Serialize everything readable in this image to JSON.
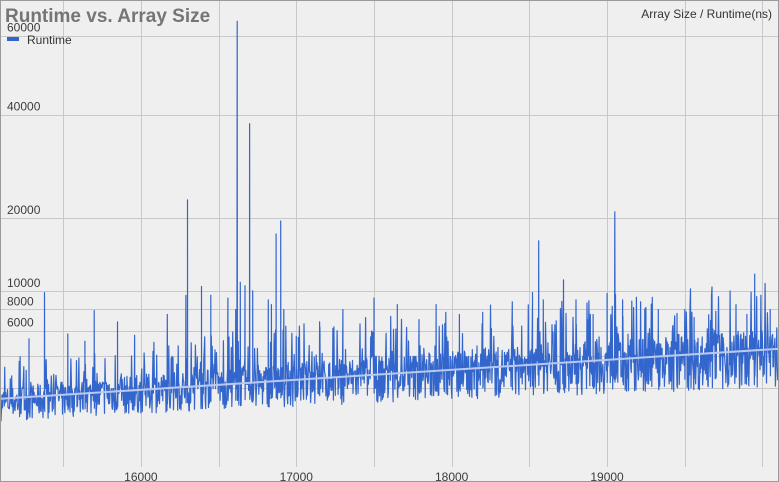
{
  "chart_data": {
    "type": "line",
    "title": "Runtime vs. Array Size",
    "axis_title": "Array Size / Runtime(ns)",
    "xlim": [
      15100,
      20100
    ],
    "ylim": [
      0,
      70000
    ],
    "y_scale": "sqrt",
    "x_ticks": [
      16000,
      17000,
      18000,
      19000
    ],
    "y_ticks": [
      6000,
      8000,
      10000,
      20000,
      40000,
      60000
    ],
    "grid": true,
    "legend_position": "top-left",
    "series": [
      {
        "name": "Runtime",
        "color": "#3366cc",
        "trend_start": [
          15100,
          1500
        ],
        "trend_end": [
          20100,
          4500
        ],
        "spikes": [
          [
            15280,
            5300
          ],
          [
            15380,
            9800
          ],
          [
            15530,
            5700
          ],
          [
            15640,
            5100
          ],
          [
            15700,
            7900
          ],
          [
            15850,
            6800
          ],
          [
            15960,
            5600
          ],
          [
            16170,
            7500
          ],
          [
            16300,
            23000
          ],
          [
            16290,
            9500
          ],
          [
            16390,
            10500
          ],
          [
            16450,
            9500
          ],
          [
            16560,
            9200
          ],
          [
            16610,
            8000
          ],
          [
            16620,
            64000
          ],
          [
            16640,
            11000
          ],
          [
            16670,
            10600
          ],
          [
            16700,
            38000
          ],
          [
            16720,
            10000
          ],
          [
            16820,
            9000
          ],
          [
            16840,
            8500
          ],
          [
            16870,
            17500
          ],
          [
            16900,
            19500
          ],
          [
            16920,
            8000
          ],
          [
            17000,
            5500
          ],
          [
            17150,
            6800
          ],
          [
            17300,
            8000
          ],
          [
            17500,
            9200
          ],
          [
            17650,
            8500
          ],
          [
            17790,
            7000
          ],
          [
            17900,
            8500
          ],
          [
            18050,
            7500
          ],
          [
            18200,
            7700
          ],
          [
            18390,
            8800
          ],
          [
            18520,
            9800
          ],
          [
            18560,
            16500
          ],
          [
            18590,
            9000
          ],
          [
            18720,
            11300
          ],
          [
            18800,
            9000
          ],
          [
            18910,
            7500
          ],
          [
            19000,
            9700
          ],
          [
            19050,
            21000
          ],
          [
            19100,
            9000
          ],
          [
            19250,
            8200
          ],
          [
            19330,
            8000
          ],
          [
            19450,
            7600
          ],
          [
            19500,
            8000
          ],
          [
            19560,
            7200
          ],
          [
            19700,
            7800
          ],
          [
            19830,
            8500
          ],
          [
            19900,
            7500
          ],
          [
            19950,
            12000
          ],
          [
            20050,
            8000
          ]
        ]
      }
    ]
  }
}
